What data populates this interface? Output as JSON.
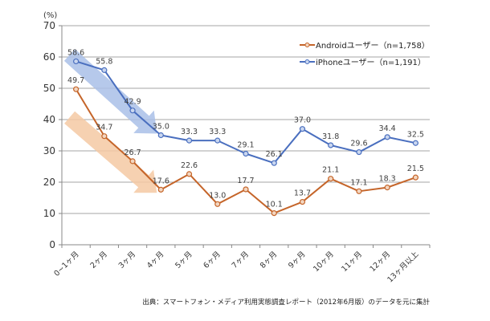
{
  "chart_data": {
    "type": "line",
    "title": "",
    "ylabel": "(%)",
    "xlabel": "",
    "ylim": [
      0,
      70
    ],
    "yticks": [
      0,
      10,
      20,
      30,
      40,
      50,
      60,
      70
    ],
    "grid": true,
    "legend_position": "top-right",
    "categories": [
      "0~1ヶ月",
      "2ヶ月",
      "3ヶ月",
      "4ヶ月",
      "5ヶ月",
      "6ヶ月",
      "7ヶ月",
      "8ヶ月",
      "9ヶ月",
      "10ヶ月",
      "11ヶ月",
      "12ヶ月",
      "13ヶ月以上"
    ],
    "series": [
      {
        "name": "Androidユーザー（n=1,758）",
        "color": "#c5652a",
        "values": [
          49.7,
          34.7,
          26.7,
          17.6,
          22.6,
          13.0,
          17.7,
          10.1,
          13.7,
          21.1,
          17.1,
          18.3,
          21.5
        ],
        "labels": [
          "49.7",
          "34.7",
          "26.7",
          "17.6",
          "22.6",
          "13.0",
          "17.7",
          "10.1",
          "13.7",
          "21.1",
          "17.1",
          "18.3",
          "21.5"
        ]
      },
      {
        "name": "iPhoneユーザー（n=1,191）",
        "color": "#4a6fbf",
        "values": [
          58.6,
          55.8,
          42.9,
          35.0,
          33.3,
          33.3,
          29.1,
          26.1,
          37.0,
          31.8,
          29.6,
          34.4,
          32.5
        ],
        "labels": [
          "58.6",
          "55.8",
          "42.9",
          "35.0",
          "33.3",
          "33.3",
          "29.1",
          "26.1",
          "37.0",
          "31.8",
          "29.6",
          "34.4",
          "32.5"
        ]
      }
    ],
    "annotations": [
      {
        "type": "trend-arrow",
        "series": "iPhoneユーザー（n=1,191）",
        "from_category": "0~1ヶ月",
        "to_category": "4ヶ月",
        "color": "#a9c0e8"
      },
      {
        "type": "trend-arrow",
        "series": "Androidユーザー（n=1,758）",
        "from_category": "0~1ヶ月",
        "to_category": "4ヶ月",
        "color": "#f5c9a3"
      }
    ],
    "source": "出典：スマートフォン・メディア利用実態調査レポート（2012年6月版）のデータを元に集計"
  }
}
